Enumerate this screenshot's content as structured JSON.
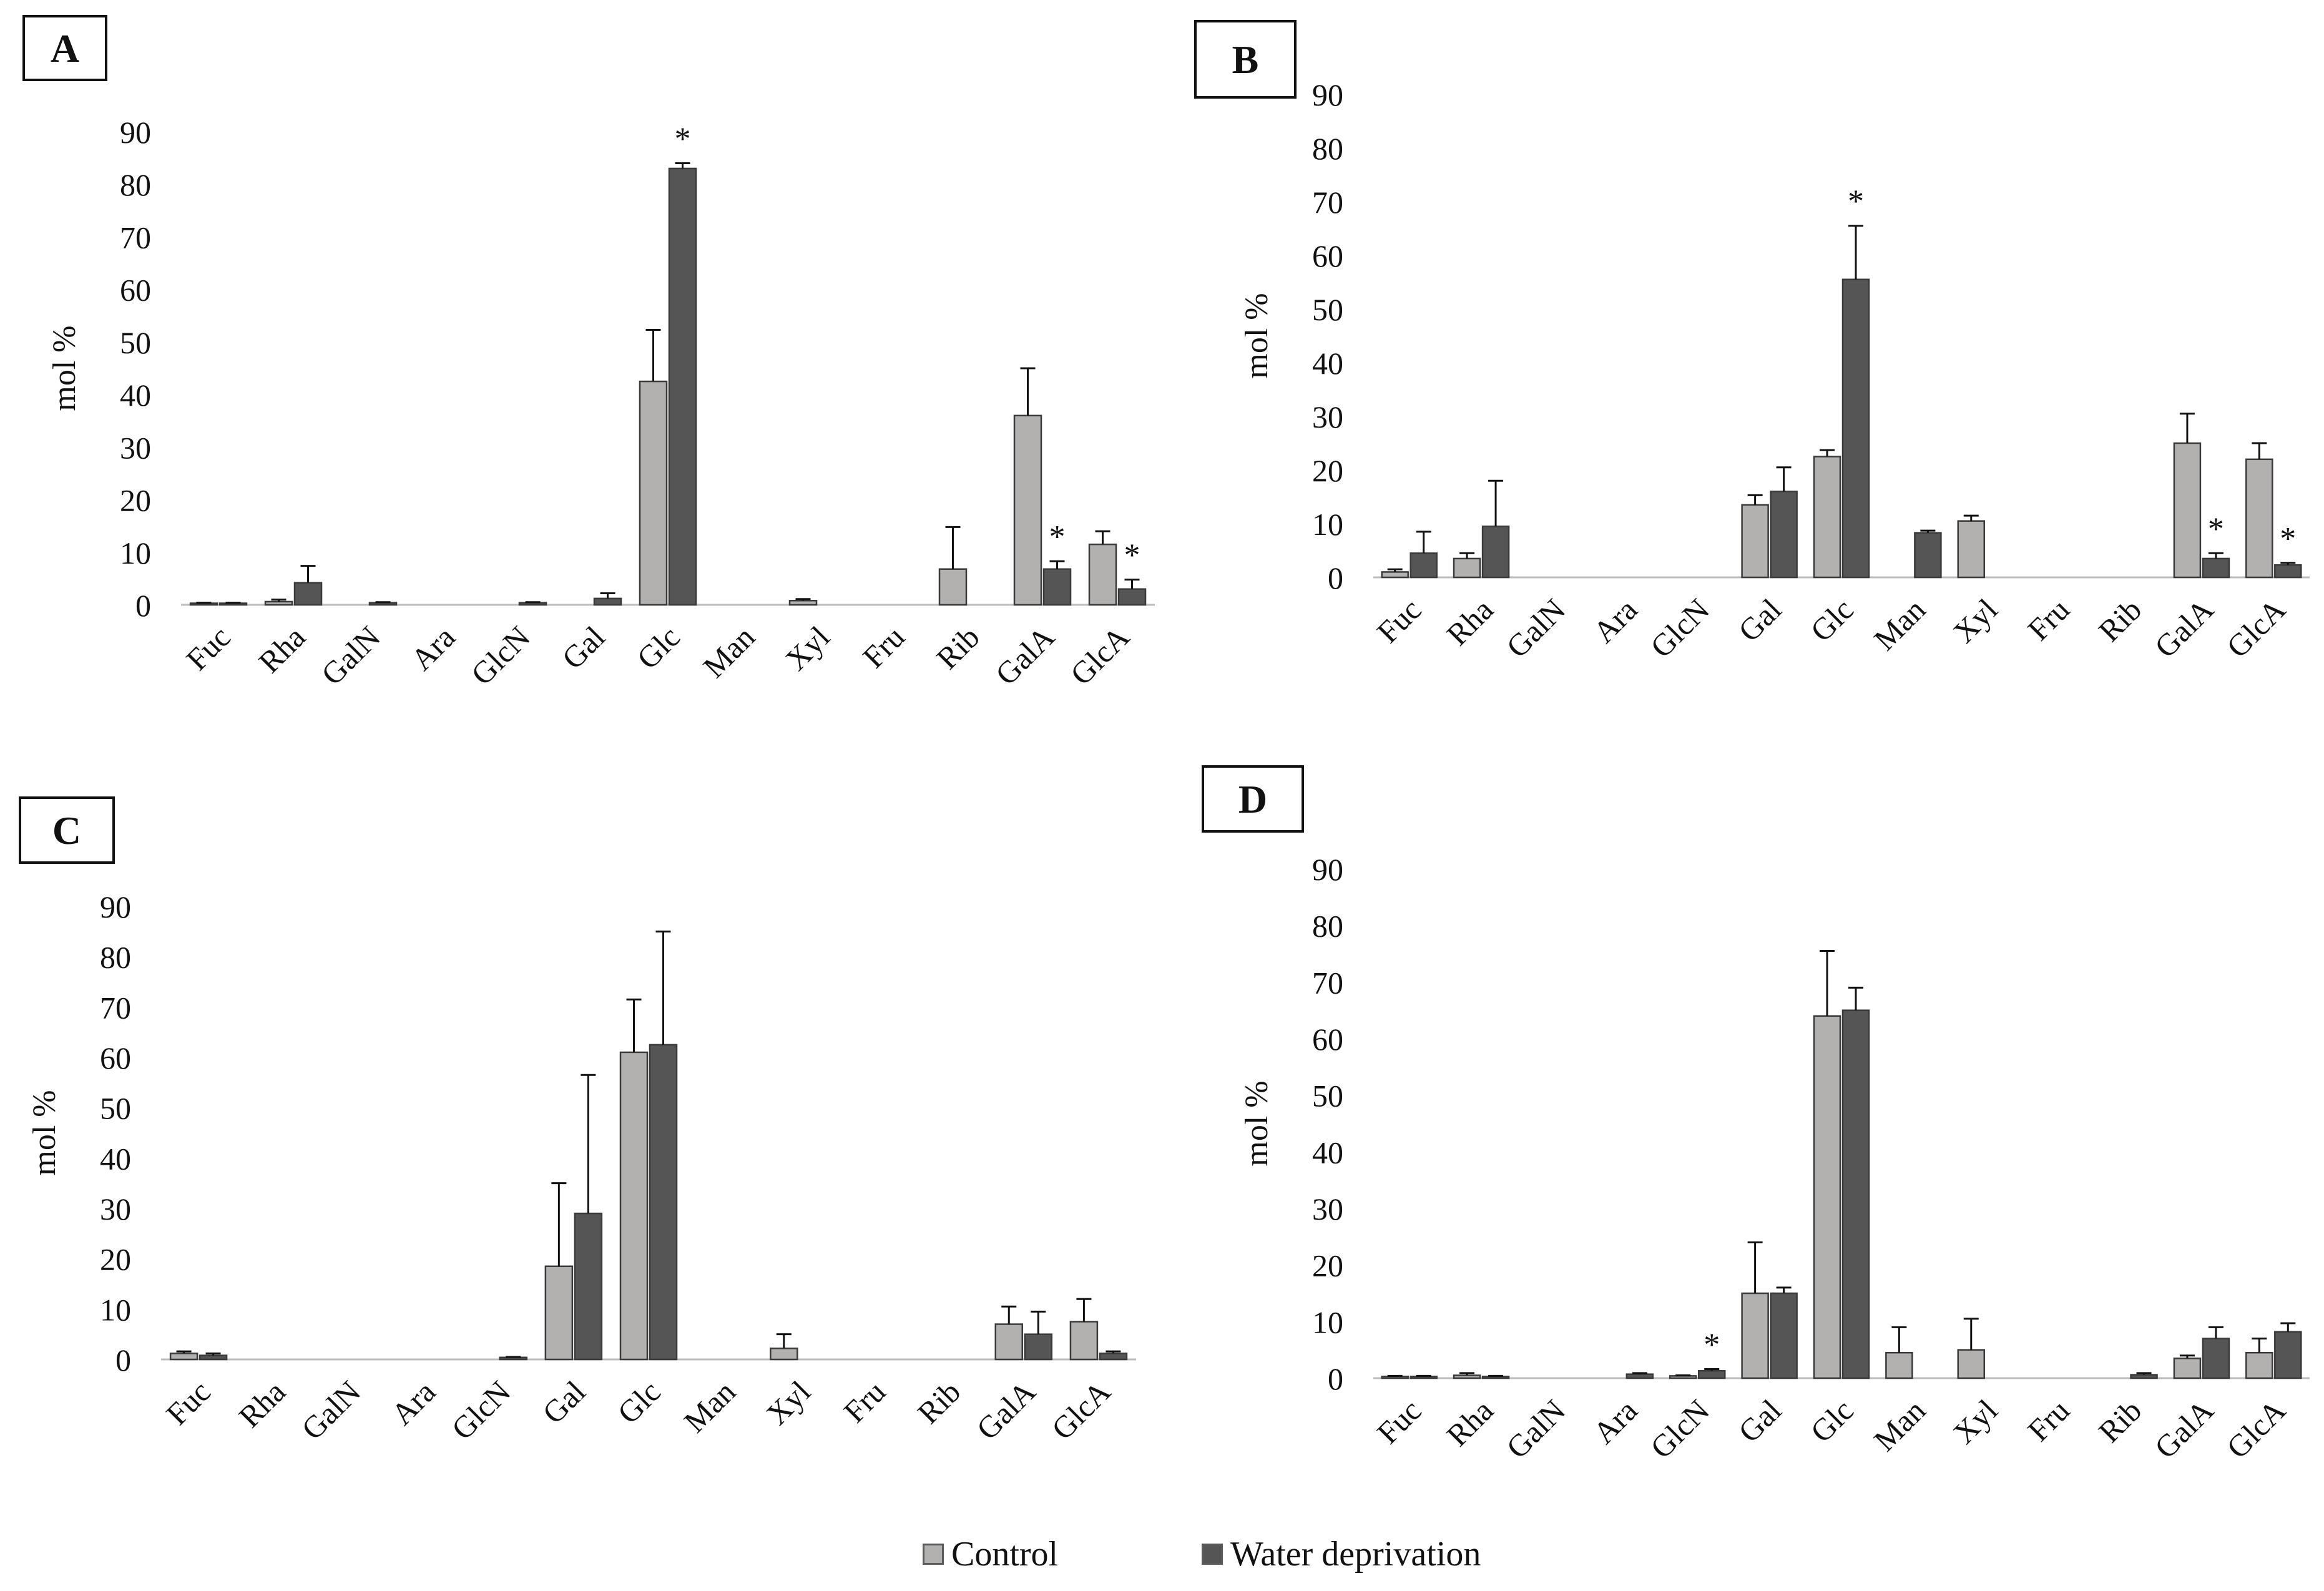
{
  "colors": {
    "control": "#b3b0b0",
    "water": "#555555",
    "outline": "#3a3a3a",
    "text": "#111111"
  },
  "legend": {
    "control": "Control",
    "water": "Water deprivation"
  },
  "chart_data": [
    {
      "type": "bar",
      "title": "A",
      "ylabel": "mol %",
      "ylim": [
        0,
        90
      ],
      "yticks": [
        "0",
        "10",
        "20",
        "30",
        "40",
        "50",
        "60",
        "70",
        "80",
        "90"
      ],
      "categories": [
        "Fuc",
        "Rha",
        "GalN",
        "Ara",
        "GlcN",
        "Gal",
        "Glc",
        "Man",
        "Xyl",
        "Fru",
        "Rib",
        "GalA",
        "GlcA"
      ],
      "series": [
        {
          "name": "Control",
          "values": [
            0.3,
            0.6,
            0,
            0,
            0,
            0,
            42.5,
            0,
            0.8,
            0,
            6.8,
            36,
            11.5
          ],
          "errors": [
            0.1,
            0.4,
            0,
            0,
            0,
            0,
            9.8,
            0,
            0.3,
            0,
            8,
            9,
            2.5
          ]
        },
        {
          "name": "Water deprivation",
          "values": [
            0.3,
            4.2,
            0.4,
            0,
            0.4,
            1.2,
            83,
            0,
            0,
            0,
            0,
            6.8,
            3
          ],
          "errors": [
            0.1,
            3.2,
            0.1,
            0,
            0.1,
            1,
            1,
            0,
            0,
            0,
            0,
            1.5,
            1.8
          ]
        }
      ],
      "significance": [
        {
          "category": "Glc",
          "series": 1,
          "label": "*"
        },
        {
          "category": "GalA",
          "series": 1,
          "label": "*"
        },
        {
          "category": "GlcA",
          "series": 1,
          "label": "*"
        }
      ]
    },
    {
      "type": "bar",
      "title": "B",
      "ylabel": "mol %",
      "ylim": [
        0,
        90
      ],
      "yticks": [
        "0",
        "10",
        "20",
        "30",
        "40",
        "50",
        "60",
        "70",
        "80",
        "90"
      ],
      "categories": [
        "Fuc",
        "Rha",
        "GalN",
        "Ara",
        "GlcN",
        "Gal",
        "Glc",
        "Man",
        "Xyl",
        "Fru",
        "Rib",
        "GalA",
        "GlcA"
      ],
      "series": [
        {
          "name": "Control",
          "values": [
            1,
            3.5,
            0,
            0,
            0,
            13.5,
            22.5,
            0,
            10.5,
            0,
            0,
            25,
            22
          ],
          "errors": [
            0.5,
            1,
            0,
            0,
            0,
            1.8,
            1.2,
            0,
            1,
            0,
            0,
            5.5,
            3
          ]
        },
        {
          "name": "Water deprivation",
          "values": [
            4.5,
            9.5,
            0,
            0,
            0,
            16,
            55.5,
            8.3,
            0,
            0,
            0,
            3.5,
            2.3
          ],
          "errors": [
            4,
            8.5,
            0,
            0,
            0,
            4.5,
            10,
            0.4,
            0,
            0,
            0,
            1,
            0.4
          ]
        }
      ],
      "significance": [
        {
          "category": "Glc",
          "series": 1,
          "label": "*"
        },
        {
          "category": "GalA",
          "series": 1,
          "label": "*"
        },
        {
          "category": "GlcA",
          "series": 1,
          "label": "*"
        }
      ]
    },
    {
      "type": "bar",
      "title": "C",
      "ylabel": "mol %",
      "ylim": [
        0,
        90
      ],
      "yticks": [
        "0",
        "10",
        "20",
        "30",
        "40",
        "50",
        "60",
        "70",
        "80",
        "90"
      ],
      "categories": [
        "Fuc",
        "Rha",
        "GalN",
        "Ara",
        "GlcN",
        "Gal",
        "Glc",
        "Man",
        "Xyl",
        "Fru",
        "Rib",
        "GalA",
        "GlcA"
      ],
      "series": [
        {
          "name": "Control",
          "values": [
            1.2,
            0,
            0,
            0,
            0,
            18.5,
            61,
            0,
            2.2,
            0,
            0,
            7,
            7.5
          ],
          "errors": [
            0.4,
            0,
            0,
            0,
            0,
            16.5,
            10.5,
            0,
            2.8,
            0,
            0,
            3.5,
            4.5
          ]
        },
        {
          "name": "Water deprivation",
          "values": [
            0.8,
            0,
            0,
            0,
            0.4,
            29,
            62.5,
            0,
            0,
            0,
            0,
            5,
            1.2
          ],
          "errors": [
            0.4,
            0,
            0,
            0,
            0.1,
            27.5,
            22.5,
            0,
            0,
            0,
            0,
            4.5,
            0.4
          ]
        }
      ],
      "significance": []
    },
    {
      "type": "bar",
      "title": "D",
      "ylabel": "mol %",
      "ylim": [
        0,
        90
      ],
      "yticks": [
        "0",
        "10",
        "20",
        "30",
        "40",
        "50",
        "60",
        "70",
        "80",
        "90"
      ],
      "categories": [
        "Fuc",
        "Rha",
        "GalN",
        "Ara",
        "GlcN",
        "Gal",
        "Glc",
        "Man",
        "Xyl",
        "Fru",
        "Rib",
        "GalA",
        "GlcA"
      ],
      "series": [
        {
          "name": "Control",
          "values": [
            0.3,
            0.5,
            0,
            0,
            0.4,
            15,
            64,
            4.5,
            5,
            0,
            0,
            3.5,
            4.5
          ],
          "errors": [
            0.1,
            0.4,
            0,
            0,
            0.1,
            9,
            11.5,
            4.5,
            5.5,
            0,
            0,
            0.5,
            2.5
          ]
        },
        {
          "name": "Water deprivation",
          "values": [
            0.3,
            0.3,
            0,
            0.7,
            1.3,
            15,
            65,
            0,
            0,
            0,
            0.6,
            7,
            8.2
          ],
          "errors": [
            0.1,
            0.1,
            0,
            0.2,
            0.3,
            1,
            4,
            0,
            0,
            0,
            0.3,
            2,
            1.5
          ]
        }
      ],
      "significance": [
        {
          "category": "GlcN",
          "series": 1,
          "label": "*"
        }
      ]
    }
  ]
}
